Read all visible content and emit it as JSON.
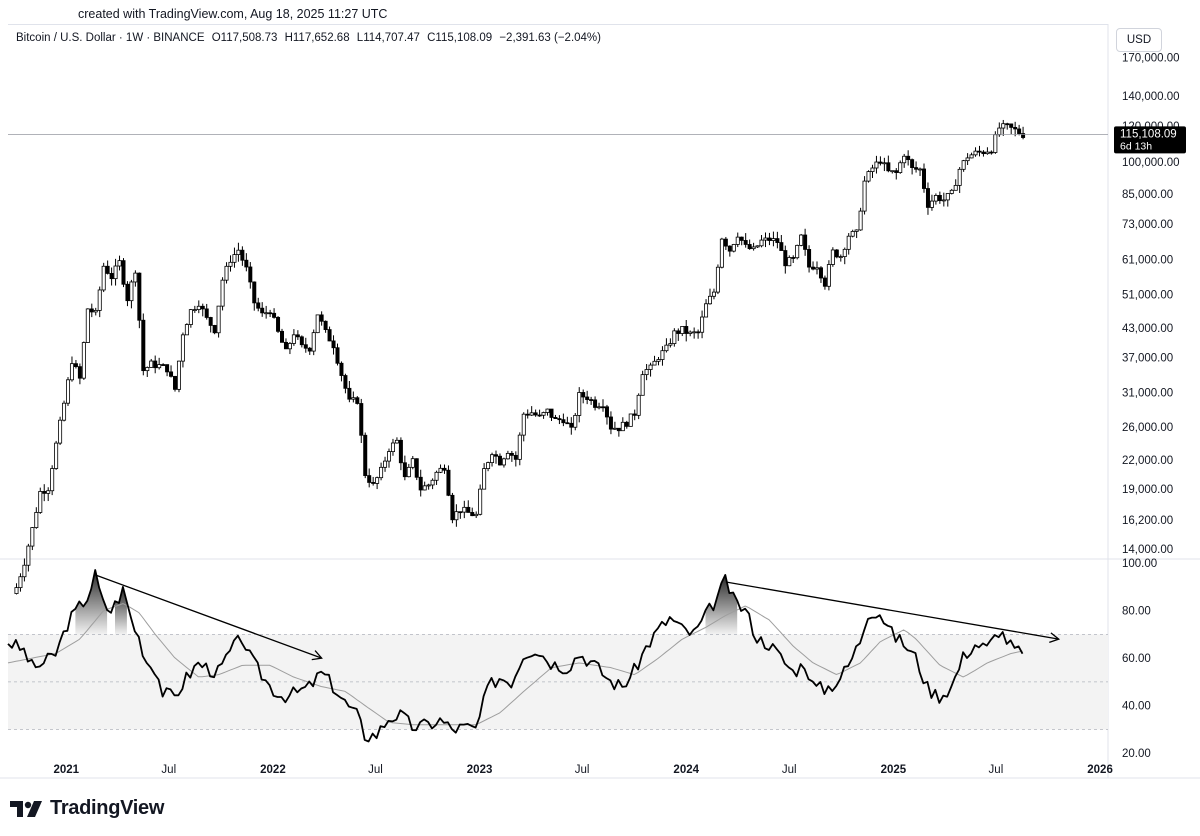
{
  "header": {
    "created_text": "created with TradingView.com, Aug 18, 2025 11:27 UTC"
  },
  "legend": {
    "symbol": "Bitcoin / U.S. Dollar · 1W · BINANCE",
    "open": "O117,508.73",
    "high": "H117,652.68",
    "low": "L114,707.47",
    "close": "C115,108.09",
    "change": "−2,391.63 (−2.04%)"
  },
  "currency_button": "USD",
  "price_label": {
    "value": "115,108.09",
    "countdown": "6d 13h"
  },
  "footer": {
    "brand": "TradingView"
  },
  "colors": {
    "candle": "#000000",
    "rsi_band": "#f3f3f3",
    "rsi_ma": "#9e9e9e",
    "axis_text": "#131722",
    "price_label_bg": "#000000"
  },
  "chart_data": [
    {
      "type": "candlestick",
      "title": "Bitcoin / U.S. Dollar · 1W · BINANCE",
      "y_scale": "log",
      "ylim": [
        13500,
        175000
      ],
      "y_ticks": [
        170000,
        140000,
        120000,
        100000,
        85000,
        73000,
        61000,
        51000,
        43000,
        37000,
        31000,
        26000,
        22000,
        19000,
        16200,
        14000
      ],
      "y_tick_labels": [
        "170,000.00",
        "140,000.00",
        "120,000.00",
        "100,000.00",
        "85,000.00",
        "73,000.00",
        "61,000.00",
        "51,000.00",
        "43,000.00",
        "37,000.00",
        "31,000.00",
        "26,000.00",
        "22,000.00",
        "19,000.00",
        "16,200.00",
        "14,000.00"
      ],
      "x_range": [
        "2020-09-20",
        "2026-01-15"
      ],
      "x_ticks": [
        "2021-01-01",
        "2021-07-01",
        "2022-01-01",
        "2022-07-01",
        "2023-01-01",
        "2023-07-01",
        "2024-01-01",
        "2024-07-01",
        "2025-01-01",
        "2025-07-01",
        "2026-01-01"
      ],
      "x_tick_labels": [
        "2021",
        "Jul",
        "2022",
        "Jul",
        "2023",
        "Jul",
        "2024",
        "Jul",
        "2025",
        "Jul",
        "2026"
      ],
      "last_price": 115108.09,
      "last_price_line": true,
      "closes": [
        [
          "2020-10-05",
          11500
        ],
        [
          "2020-10-19",
          13100
        ],
        [
          "2020-11-02",
          15500
        ],
        [
          "2020-11-16",
          18700
        ],
        [
          "2020-11-30",
          19100
        ],
        [
          "2020-12-14",
          23800
        ],
        [
          "2020-12-28",
          29300
        ],
        [
          "2021-01-11",
          36500
        ],
        [
          "2021-01-25",
          33200
        ],
        [
          "2021-02-08",
          47500
        ],
        [
          "2021-02-22",
          46200
        ],
        [
          "2021-03-08",
          59000
        ],
        [
          "2021-03-22",
          55800
        ],
        [
          "2021-04-05",
          60000
        ],
        [
          "2021-04-19",
          50000
        ],
        [
          "2021-05-03",
          58000
        ],
        [
          "2021-05-17",
          34700
        ],
        [
          "2021-05-31",
          35800
        ],
        [
          "2021-06-14",
          35500
        ],
        [
          "2021-06-28",
          35000
        ],
        [
          "2021-07-12",
          31500
        ],
        [
          "2021-07-26",
          42000
        ],
        [
          "2021-08-09",
          47000
        ],
        [
          "2021-08-23",
          49000
        ],
        [
          "2021-09-06",
          45000
        ],
        [
          "2021-09-20",
          42700
        ],
        [
          "2021-10-04",
          55000
        ],
        [
          "2021-10-18",
          61000
        ],
        [
          "2021-11-01",
          64000
        ],
        [
          "2021-11-15",
          58000
        ],
        [
          "2021-11-29",
          49000
        ],
        [
          "2021-12-13",
          46000
        ],
        [
          "2021-12-27",
          47200
        ],
        [
          "2022-01-10",
          42000
        ],
        [
          "2022-01-24",
          38000
        ],
        [
          "2022-02-07",
          42000
        ],
        [
          "2022-02-21",
          39000
        ],
        [
          "2022-03-07",
          38900
        ],
        [
          "2022-03-21",
          46300
        ],
        [
          "2022-04-04",
          42000
        ],
        [
          "2022-04-18",
          39500
        ],
        [
          "2022-05-02",
          34000
        ],
        [
          "2022-05-16",
          29500
        ],
        [
          "2022-05-30",
          29800
        ],
        [
          "2022-06-13",
          20500
        ],
        [
          "2022-06-27",
          19300
        ],
        [
          "2022-07-11",
          20800
        ],
        [
          "2022-07-25",
          23300
        ],
        [
          "2022-08-08",
          24200
        ],
        [
          "2022-08-22",
          20000
        ],
        [
          "2022-09-05",
          21800
        ],
        [
          "2022-09-19",
          19000
        ],
        [
          "2022-10-03",
          19400
        ],
        [
          "2022-10-17",
          20600
        ],
        [
          "2022-10-31",
          21300
        ],
        [
          "2022-11-14",
          16500
        ],
        [
          "2022-11-28",
          17100
        ],
        [
          "2022-12-12",
          16800
        ],
        [
          "2022-12-26",
          16600
        ],
        [
          "2023-01-09",
          20900
        ],
        [
          "2023-01-23",
          23000
        ],
        [
          "2023-02-06",
          21800
        ],
        [
          "2023-02-20",
          23100
        ],
        [
          "2023-03-06",
          22100
        ],
        [
          "2023-03-20",
          27800
        ],
        [
          "2023-04-03",
          28000
        ],
        [
          "2023-04-17",
          27300
        ],
        [
          "2023-05-01",
          28200
        ],
        [
          "2023-05-15",
          26900
        ],
        [
          "2023-05-29",
          27100
        ],
        [
          "2023-06-12",
          25500
        ],
        [
          "2023-06-26",
          30500
        ],
        [
          "2023-07-10",
          30300
        ],
        [
          "2023-07-24",
          29200
        ],
        [
          "2023-08-07",
          29400
        ],
        [
          "2023-08-21",
          26000
        ],
        [
          "2023-09-04",
          25900
        ],
        [
          "2023-09-18",
          26600
        ],
        [
          "2023-10-02",
          27900
        ],
        [
          "2023-10-16",
          34500
        ],
        [
          "2023-10-30",
          35000
        ],
        [
          "2023-11-13",
          37200
        ],
        [
          "2023-11-27",
          38700
        ],
        [
          "2023-12-11",
          41900
        ],
        [
          "2023-12-25",
          42600
        ],
        [
          "2024-01-08",
          41700
        ],
        [
          "2024-01-22",
          42000
        ],
        [
          "2024-02-05",
          48300
        ],
        [
          "2024-02-19",
          51700
        ],
        [
          "2024-03-04",
          68300
        ],
        [
          "2024-03-18",
          64000
        ],
        [
          "2024-04-01",
          69400
        ],
        [
          "2024-04-15",
          64900
        ],
        [
          "2024-04-29",
          63900
        ],
        [
          "2024-05-13",
          66900
        ],
        [
          "2024-05-27",
          67500
        ],
        [
          "2024-06-10",
          66700
        ],
        [
          "2024-06-24",
          60000
        ],
        [
          "2024-07-08",
          60800
        ],
        [
          "2024-07-22",
          68200
        ],
        [
          "2024-08-05",
          58700
        ],
        [
          "2024-08-19",
          59300
        ],
        [
          "2024-09-02",
          54000
        ],
        [
          "2024-09-16",
          63300
        ],
        [
          "2024-09-30",
          62100
        ],
        [
          "2024-10-14",
          69000
        ],
        [
          "2024-10-28",
          69500
        ],
        [
          "2024-11-11",
          90500
        ],
        [
          "2024-11-25",
          97000
        ],
        [
          "2024-12-09",
          101000
        ],
        [
          "2024-12-23",
          95000
        ],
        [
          "2025-01-06",
          94500
        ],
        [
          "2025-01-20",
          104500
        ],
        [
          "2025-02-03",
          96500
        ],
        [
          "2025-02-17",
          96300
        ],
        [
          "2025-03-03",
          80700
        ],
        [
          "2025-03-17",
          84000
        ],
        [
          "2025-03-31",
          82600
        ],
        [
          "2025-04-14",
          85000
        ],
        [
          "2025-04-28",
          96500
        ],
        [
          "2025-05-12",
          103000
        ],
        [
          "2025-05-26",
          104600
        ],
        [
          "2025-06-09",
          105500
        ],
        [
          "2025-06-23",
          107000
        ],
        [
          "2025-07-07",
          119000
        ],
        [
          "2025-07-21",
          119400
        ],
        [
          "2025-08-04",
          117500
        ],
        [
          "2025-08-18",
          115108
        ]
      ]
    },
    {
      "type": "line",
      "series": [
        {
          "values": "rsi"
        },
        {
          "values": "rsi_ma"
        }
      ],
      "ylim": [
        18,
        100
      ],
      "y_ticks": [
        100,
        80,
        60,
        40,
        20
      ],
      "y_tick_labels": [
        "100.00",
        "80.00",
        "60.00",
        "40.00",
        "20.00"
      ],
      "band": [
        30,
        70
      ],
      "midline": 50,
      "rsi": [
        [
          "2020-09-20",
          67
        ],
        [
          "2020-10-19",
          63
        ],
        [
          "2020-11-02",
          56
        ],
        [
          "2020-11-23",
          58
        ],
        [
          "2020-12-14",
          62
        ],
        [
          "2021-01-04",
          75
        ],
        [
          "2021-01-25",
          82
        ],
        [
          "2021-02-08",
          86
        ],
        [
          "2021-02-21",
          95
        ],
        [
          "2021-03-08",
          82
        ],
        [
          "2021-03-22",
          80
        ],
        [
          "2021-04-12",
          89
        ],
        [
          "2021-04-26",
          76
        ],
        [
          "2021-05-10",
          68
        ],
        [
          "2021-05-24",
          58
        ],
        [
          "2021-06-07",
          56
        ],
        [
          "2021-06-21",
          45
        ],
        [
          "2021-07-12",
          44
        ],
        [
          "2021-08-02",
          52
        ],
        [
          "2021-08-23",
          58
        ],
        [
          "2021-09-13",
          55
        ],
        [
          "2021-09-27",
          54
        ],
        [
          "2021-10-18",
          63
        ],
        [
          "2021-11-08",
          69
        ],
        [
          "2021-11-22",
          60
        ],
        [
          "2021-12-06",
          55
        ],
        [
          "2021-12-27",
          48
        ],
        [
          "2022-01-17",
          44
        ],
        [
          "2022-02-07",
          45
        ],
        [
          "2022-03-07",
          48
        ],
        [
          "2022-03-28",
          54
        ],
        [
          "2022-04-18",
          48
        ],
        [
          "2022-05-09",
          41
        ],
        [
          "2022-05-30",
          36
        ],
        [
          "2022-06-13",
          27
        ],
        [
          "2022-07-04",
          28
        ],
        [
          "2022-07-25",
          35
        ],
        [
          "2022-08-15",
          36
        ],
        [
          "2022-09-05",
          31
        ],
        [
          "2022-10-03",
          32
        ],
        [
          "2022-10-24",
          34
        ],
        [
          "2022-11-14",
          30
        ],
        [
          "2022-12-05",
          31
        ],
        [
          "2022-12-26",
          30
        ],
        [
          "2023-01-16",
          48
        ],
        [
          "2023-02-06",
          52
        ],
        [
          "2023-02-27",
          50
        ],
        [
          "2023-03-20",
          62
        ],
        [
          "2023-04-10",
          64
        ],
        [
          "2023-05-08",
          58
        ],
        [
          "2023-06-05",
          56
        ],
        [
          "2023-06-26",
          62
        ],
        [
          "2023-07-24",
          57
        ],
        [
          "2023-08-21",
          50
        ],
        [
          "2023-09-11",
          48
        ],
        [
          "2023-10-02",
          55
        ],
        [
          "2023-10-23",
          65
        ],
        [
          "2023-11-13",
          72
        ],
        [
          "2023-12-04",
          77
        ],
        [
          "2023-12-25",
          72
        ],
        [
          "2024-01-15",
          70
        ],
        [
          "2024-02-05",
          78
        ],
        [
          "2024-02-26",
          86
        ],
        [
          "2024-03-11",
          93
        ],
        [
          "2024-03-25",
          84
        ],
        [
          "2024-04-15",
          80
        ],
        [
          "2024-05-06",
          68
        ],
        [
          "2024-05-27",
          66
        ],
        [
          "2024-06-17",
          60
        ],
        [
          "2024-07-08",
          54
        ],
        [
          "2024-07-29",
          58
        ],
        [
          "2024-08-12",
          48
        ],
        [
          "2024-09-02",
          47
        ],
        [
          "2024-09-23",
          50
        ],
        [
          "2024-10-14",
          57
        ],
        [
          "2024-11-04",
          68
        ],
        [
          "2024-11-18",
          80
        ],
        [
          "2024-12-09",
          79
        ],
        [
          "2024-12-30",
          70
        ],
        [
          "2025-01-20",
          66
        ],
        [
          "2025-02-10",
          60
        ],
        [
          "2025-03-03",
          47
        ],
        [
          "2025-03-24",
          44
        ],
        [
          "2025-04-14",
          48
        ],
        [
          "2025-05-05",
          61
        ],
        [
          "2025-05-26",
          66
        ],
        [
          "2025-06-16",
          64
        ],
        [
          "2025-07-07",
          72
        ],
        [
          "2025-07-28",
          65
        ],
        [
          "2025-08-18",
          61
        ]
      ],
      "rsi_ma": [
        [
          "2020-09-20",
          58
        ],
        [
          "2020-11-02",
          60
        ],
        [
          "2020-12-14",
          62
        ],
        [
          "2021-01-25",
          68
        ],
        [
          "2021-03-08",
          80
        ],
        [
          "2021-04-12",
          83
        ],
        [
          "2021-05-10",
          79
        ],
        [
          "2021-06-07",
          70
        ],
        [
          "2021-07-12",
          60
        ],
        [
          "2021-08-23",
          52
        ],
        [
          "2021-09-27",
          53
        ],
        [
          "2021-11-08",
          57
        ],
        [
          "2021-12-27",
          57
        ],
        [
          "2022-02-07",
          52
        ],
        [
          "2022-03-28",
          48
        ],
        [
          "2022-05-09",
          46
        ],
        [
          "2022-06-13",
          40
        ],
        [
          "2022-07-25",
          33
        ],
        [
          "2022-09-05",
          32
        ],
        [
          "2022-10-24",
          32
        ],
        [
          "2022-12-26",
          32
        ],
        [
          "2023-02-06",
          37
        ],
        [
          "2023-03-20",
          46
        ],
        [
          "2023-05-08",
          56
        ],
        [
          "2023-06-26",
          58
        ],
        [
          "2023-08-21",
          56
        ],
        [
          "2023-10-02",
          53
        ],
        [
          "2023-11-13",
          60
        ],
        [
          "2023-12-25",
          68
        ],
        [
          "2024-02-05",
          73
        ],
        [
          "2024-03-11",
          78
        ],
        [
          "2024-04-15",
          82
        ],
        [
          "2024-05-27",
          76
        ],
        [
          "2024-07-08",
          65
        ],
        [
          "2024-08-12",
          58
        ],
        [
          "2024-09-23",
          53
        ],
        [
          "2024-11-04",
          58
        ],
        [
          "2024-12-09",
          67
        ],
        [
          "2025-01-20",
          72
        ],
        [
          "2025-02-10",
          68
        ],
        [
          "2025-03-24",
          57
        ],
        [
          "2025-05-05",
          52
        ],
        [
          "2025-06-16",
          58
        ],
        [
          "2025-07-28",
          62
        ],
        [
          "2025-08-18",
          63
        ]
      ],
      "trendlines": [
        {
          "from": [
            "2021-02-21",
            95
          ],
          "to": [
            "2022-03-28",
            60
          ],
          "arrow": true
        },
        {
          "from": [
            "2024-03-11",
            92
          ],
          "to": [
            "2025-10-20",
            68
          ],
          "arrow": true
        }
      ]
    }
  ]
}
